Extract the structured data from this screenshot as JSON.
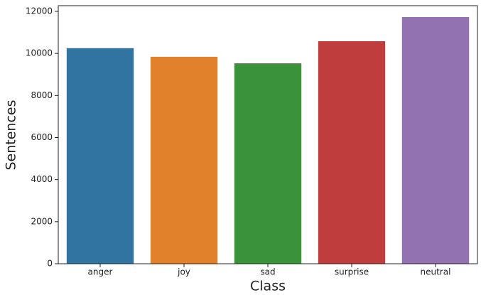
{
  "chart_data": {
    "type": "bar",
    "x_label": "Class",
    "y_label": "Sentences",
    "categories": [
      "anger",
      "joy",
      "sad",
      "surprise",
      "neutral"
    ],
    "values": [
      10250,
      9840,
      9530,
      10580,
      11730
    ],
    "colors": [
      "#3274a1",
      "#e1812c",
      "#3a923a",
      "#c03d3e",
      "#9372b2"
    ],
    "ylim": [
      0,
      12270
    ],
    "yticks": [
      0,
      2000,
      4000,
      6000,
      8000,
      10000,
      12000
    ],
    "grid": false
  }
}
